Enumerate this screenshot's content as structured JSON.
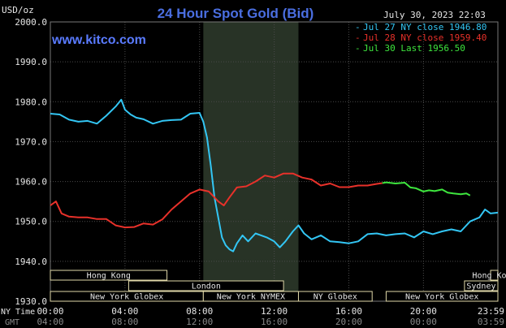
{
  "chart_data": {
    "type": "line",
    "title": "24 Hour Spot Gold (Bid)",
    "watermark": "www.kitco.com",
    "timestamp": "July 30, 2023 22:03",
    "y_unit": "USD/oz",
    "ylim": [
      1930,
      2000
    ],
    "y_ticks": [
      "2000.0",
      "1990.0",
      "1980.0",
      "1970.0",
      "1960.0",
      "1950.0",
      "1940.0",
      "1930.0"
    ],
    "x_ticks_ny": [
      "00:00",
      "04:00",
      "08:00",
      "12:00",
      "16:00",
      "20:00",
      "23:59"
    ],
    "x_ticks_gmt": [
      "04:00",
      "08:00",
      "12:00",
      "16:00",
      "20:00",
      "00:00",
      "03:59"
    ],
    "row_labels": {
      "ny": "NY Time",
      "gmt": "GMT"
    },
    "grid": true,
    "legend_position": "top-right",
    "series": [
      {
        "name": "Jul 27 NY close 1946.80",
        "color": "#33c6f4",
        "x_hours": [
          0,
          0.5,
          1,
          1.5,
          2,
          2.5,
          3,
          3.5,
          3.8,
          4,
          4.3,
          4.6,
          5,
          5.5,
          6,
          6.5,
          7,
          7.5,
          8,
          8.2,
          8.4,
          8.6,
          8.8,
          9.0,
          9.2,
          9.4,
          9.6,
          9.8,
          10,
          10.3,
          10.6,
          11,
          11.3,
          11.6,
          12,
          12.3,
          12.6,
          13,
          13.3,
          13.6,
          14,
          14.5,
          15,
          15.5,
          16,
          16.5,
          17,
          17.5,
          18,
          18.5,
          19,
          19.5,
          20,
          20.5,
          21,
          21.5,
          22,
          22.5,
          23,
          23.3,
          23.6,
          23.99
        ],
        "values": [
          1977.0,
          1976.8,
          1975.5,
          1975.0,
          1975.2,
          1974.5,
          1976.5,
          1978.8,
          1980.5,
          1978.0,
          1976.8,
          1976.0,
          1975.6,
          1974.5,
          1975.2,
          1975.4,
          1975.5,
          1977.0,
          1977.2,
          1975.0,
          1971.0,
          1964.0,
          1956.0,
          1951.0,
          1946.0,
          1944.0,
          1943.0,
          1942.5,
          1944.5,
          1946.5,
          1945.0,
          1947.0,
          1946.5,
          1946.0,
          1945.0,
          1943.5,
          1945.0,
          1947.5,
          1949.0,
          1947.0,
          1945.5,
          1946.5,
          1945.0,
          1944.8,
          1944.5,
          1945.0,
          1946.8,
          1947.0,
          1946.5,
          1946.8,
          1947.0,
          1946.0,
          1947.5,
          1946.8,
          1947.5,
          1948.0,
          1947.5,
          1950.0,
          1951.0,
          1953.0,
          1952.0,
          1952.2
        ]
      },
      {
        "name": "Jul 28 NY close 1959.40",
        "color": "#e8312a",
        "x_hours": [
          0,
          0.3,
          0.6,
          1,
          1.5,
          2,
          2.5,
          3,
          3.5,
          4,
          4.5,
          5,
          5.5,
          6,
          6.5,
          7,
          7.5,
          8,
          8.5,
          9,
          9.3,
          9.6,
          10,
          10.5,
          11,
          11.5,
          12,
          12.5,
          13,
          13.5,
          14,
          14.5,
          15,
          15.5,
          16,
          16.5,
          17,
          17.5,
          17.8
        ],
        "values": [
          1954.0,
          1955.0,
          1952.0,
          1951.2,
          1951.0,
          1951.0,
          1950.6,
          1950.6,
          1949.0,
          1948.5,
          1948.6,
          1949.5,
          1949.2,
          1950.5,
          1953.0,
          1955.0,
          1957.0,
          1958.0,
          1957.5,
          1955.0,
          1954.0,
          1956.0,
          1958.5,
          1958.8,
          1960.0,
          1961.5,
          1961.0,
          1962.0,
          1962.0,
          1961.0,
          1960.5,
          1959.0,
          1959.5,
          1958.6,
          1958.6,
          1959.0,
          1959.0,
          1959.4,
          1959.6
        ]
      },
      {
        "name": "Jul 30 Last 1956.50",
        "color": "#3ee63e",
        "x_hours": [
          17.8,
          18.0,
          18.5,
          19.0,
          19.3,
          19.6,
          20.0,
          20.3,
          20.6,
          21.0,
          21.3,
          21.6,
          22.0,
          22.3,
          22.5
        ],
        "values": [
          1959.6,
          1959.8,
          1959.5,
          1959.7,
          1958.5,
          1958.3,
          1957.5,
          1957.8,
          1957.6,
          1958.0,
          1957.2,
          1957.0,
          1956.8,
          1957.0,
          1956.5
        ]
      }
    ],
    "sessions": [
      {
        "name": "Hong Kong",
        "row": 0,
        "start": 0,
        "end": 6.25
      },
      {
        "name": "Hong Kong",
        "row": 0,
        "start": 23.6,
        "end": 23.99
      },
      {
        "name": "Sydney",
        "row": 1,
        "start": 22.2,
        "end": 23.99
      },
      {
        "name": "London",
        "row": 2,
        "start": 4.2,
        "end": 12.5
      },
      {
        "name": "New York Globex",
        "row": 3,
        "start": 0,
        "end": 8.2
      },
      {
        "name": "New York NYMEX",
        "row": 3,
        "start": 8.2,
        "end": 13.3
      },
      {
        "name": "NY Globex",
        "row": 3,
        "start": 13.3,
        "end": 17.25
      },
      {
        "name": "New York Globex",
        "row": 3,
        "start": 18.0,
        "end": 23.99
      }
    ],
    "highlight_hours": [
      8.2,
      13.3
    ],
    "colors": {
      "title": "#4a6ee0",
      "watermark": "#5a7bff",
      "axis_text": "#e6e6e6",
      "grid": "#4a4a4a",
      "highlight_band": "#283326",
      "session_fill": "#000000",
      "session_text": "#e6e6e6"
    }
  }
}
